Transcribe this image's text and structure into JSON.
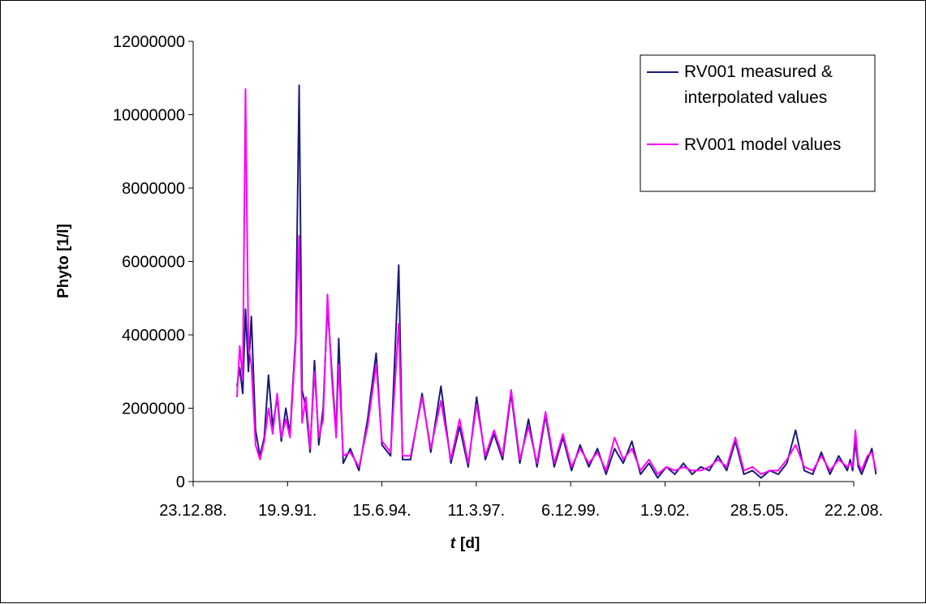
{
  "chart_data": {
    "type": "line",
    "title": "",
    "xlabel": "[d]",
    "xlabel_symbol": "t",
    "ylabel": "Phyto [1/l]",
    "x_type": "date",
    "xlim": [
      "1988-12-23",
      "2008-02-22"
    ],
    "ylim": [
      0,
      12000000
    ],
    "x_ticks": [
      "23.12.88.",
      "19.9.91.",
      "15.6.94.",
      "11.3.97.",
      "6.12.99.",
      "1.9.02.",
      "28.5.05.",
      "22.2.08."
    ],
    "x_tick_dates": [
      "1988-12-23",
      "1991-09-19",
      "1994-06-15",
      "1997-03-11",
      "1999-12-06",
      "2002-09-01",
      "2005-05-28",
      "2008-02-22"
    ],
    "y_ticks": [
      "0",
      "2000000",
      "4000000",
      "6000000",
      "8000000",
      "10000000",
      "12000000"
    ],
    "y_tick_values": [
      0,
      2000000,
      4000000,
      6000000,
      8000000,
      10000000,
      12000000
    ],
    "grid": false,
    "legend_position": "top-right",
    "series": [
      {
        "name": "RV001 measured & interpolated values",
        "color": "#1a1a7a",
        "points": [
          [
            "1990-04-01",
            2600000
          ],
          [
            "1990-05-01",
            3100000
          ],
          [
            "1990-06-01",
            2400000
          ],
          [
            "1990-07-01",
            4700000
          ],
          [
            "1990-08-01",
            3000000
          ],
          [
            "1990-09-01",
            4500000
          ],
          [
            "1990-10-15",
            1400000
          ],
          [
            "1990-12-01",
            700000
          ],
          [
            "1991-01-15",
            1200000
          ],
          [
            "1991-03-01",
            2900000
          ],
          [
            "1991-04-15",
            1500000
          ],
          [
            "1991-06-01",
            2300000
          ],
          [
            "1991-07-15",
            1100000
          ],
          [
            "1991-09-01",
            2000000
          ],
          [
            "1991-10-15",
            1300000
          ],
          [
            "1991-12-15",
            4000000
          ],
          [
            "1992-01-20",
            10800000
          ],
          [
            "1992-02-20",
            2500000
          ],
          [
            "1992-04-01",
            2000000
          ],
          [
            "1992-05-15",
            800000
          ],
          [
            "1992-07-01",
            3300000
          ],
          [
            "1992-08-15",
            1000000
          ],
          [
            "1992-10-01",
            2000000
          ],
          [
            "1992-11-15",
            4800000
          ],
          [
            "1993-01-01",
            3000000
          ],
          [
            "1993-02-15",
            1300000
          ],
          [
            "1993-03-15",
            3900000
          ],
          [
            "1993-05-01",
            500000
          ],
          [
            "1993-07-15",
            900000
          ],
          [
            "1993-10-15",
            300000
          ],
          [
            "1994-01-15",
            1700000
          ],
          [
            "1994-04-15",
            3500000
          ],
          [
            "1994-06-15",
            1000000
          ],
          [
            "1994-09-15",
            700000
          ],
          [
            "1994-12-10",
            5900000
          ],
          [
            "1995-01-20",
            600000
          ],
          [
            "1995-04-15",
            600000
          ],
          [
            "1995-08-15",
            2400000
          ],
          [
            "1995-11-15",
            800000
          ],
          [
            "1996-03-01",
            2600000
          ],
          [
            "1996-06-15",
            500000
          ],
          [
            "1996-09-15",
            1500000
          ],
          [
            "1996-12-15",
            400000
          ],
          [
            "1997-03-15",
            2300000
          ],
          [
            "1997-06-15",
            600000
          ],
          [
            "1997-09-15",
            1300000
          ],
          [
            "1997-12-15",
            600000
          ],
          [
            "1998-03-15",
            2400000
          ],
          [
            "1998-06-15",
            500000
          ],
          [
            "1998-09-15",
            1700000
          ],
          [
            "1998-12-15",
            400000
          ],
          [
            "1999-03-15",
            1800000
          ],
          [
            "1999-06-15",
            400000
          ],
          [
            "1999-09-15",
            1200000
          ],
          [
            "1999-12-15",
            300000
          ],
          [
            "2000-03-15",
            1000000
          ],
          [
            "2000-06-15",
            400000
          ],
          [
            "2000-09-15",
            900000
          ],
          [
            "2000-12-15",
            200000
          ],
          [
            "2001-03-15",
            900000
          ],
          [
            "2001-06-15",
            500000
          ],
          [
            "2001-09-15",
            1100000
          ],
          [
            "2001-12-15",
            200000
          ],
          [
            "2002-03-15",
            500000
          ],
          [
            "2002-06-15",
            100000
          ],
          [
            "2002-09-15",
            400000
          ],
          [
            "2002-12-15",
            200000
          ],
          [
            "2003-03-15",
            500000
          ],
          [
            "2003-06-15",
            200000
          ],
          [
            "2003-09-15",
            400000
          ],
          [
            "2003-12-15",
            300000
          ],
          [
            "2004-03-15",
            700000
          ],
          [
            "2004-06-15",
            300000
          ],
          [
            "2004-09-15",
            1100000
          ],
          [
            "2004-12-15",
            200000
          ],
          [
            "2005-03-15",
            300000
          ],
          [
            "2005-06-15",
            100000
          ],
          [
            "2005-09-15",
            300000
          ],
          [
            "2005-12-15",
            200000
          ],
          [
            "2006-03-15",
            500000
          ],
          [
            "2006-06-15",
            1400000
          ],
          [
            "2006-09-15",
            300000
          ],
          [
            "2006-12-15",
            200000
          ],
          [
            "2007-03-15",
            800000
          ],
          [
            "2007-06-15",
            200000
          ],
          [
            "2007-09-15",
            700000
          ],
          [
            "2007-12-15",
            300000
          ],
          [
            "2008-01-15",
            600000
          ],
          [
            "2008-02-10",
            300000
          ],
          [
            "2008-03-10",
            1100000
          ],
          [
            "2008-04-10",
            400000
          ],
          [
            "2008-05-15",
            200000
          ],
          [
            "2008-07-15",
            600000
          ],
          [
            "2008-09-01",
            900000
          ],
          [
            "2008-10-15",
            200000
          ]
        ]
      },
      {
        "name": "RV001 model values",
        "color": "#ff00ff",
        "points": [
          [
            "1990-04-01",
            2300000
          ],
          [
            "1990-05-01",
            3700000
          ],
          [
            "1990-06-01",
            2800000
          ],
          [
            "1990-07-01",
            10700000
          ],
          [
            "1990-08-01",
            3700000
          ],
          [
            "1990-09-01",
            3200000
          ],
          [
            "1990-10-15",
            1000000
          ],
          [
            "1990-12-01",
            600000
          ],
          [
            "1991-01-15",
            1100000
          ],
          [
            "1991-03-01",
            2000000
          ],
          [
            "1991-04-15",
            1300000
          ],
          [
            "1991-06-01",
            2400000
          ],
          [
            "1991-07-15",
            1200000
          ],
          [
            "1991-09-01",
            1700000
          ],
          [
            "1991-10-15",
            1200000
          ],
          [
            "1991-12-15",
            3800000
          ],
          [
            "1992-01-20",
            6700000
          ],
          [
            "1992-02-20",
            1600000
          ],
          [
            "1992-04-01",
            2300000
          ],
          [
            "1992-05-15",
            900000
          ],
          [
            "1992-07-01",
            3000000
          ],
          [
            "1992-08-15",
            1200000
          ],
          [
            "1992-10-01",
            1700000
          ],
          [
            "1992-11-15",
            5100000
          ],
          [
            "1993-01-01",
            2800000
          ],
          [
            "1993-02-15",
            1200000
          ],
          [
            "1993-03-15",
            3200000
          ],
          [
            "1993-05-01",
            700000
          ],
          [
            "1993-07-15",
            800000
          ],
          [
            "1993-10-15",
            400000
          ],
          [
            "1994-01-15",
            1500000
          ],
          [
            "1994-04-15",
            3200000
          ],
          [
            "1994-06-15",
            1100000
          ],
          [
            "1994-09-15",
            800000
          ],
          [
            "1994-12-10",
            4300000
          ],
          [
            "1995-01-20",
            700000
          ],
          [
            "1995-04-15",
            700000
          ],
          [
            "1995-08-15",
            2300000
          ],
          [
            "1995-11-15",
            900000
          ],
          [
            "1996-03-01",
            2200000
          ],
          [
            "1996-06-15",
            600000
          ],
          [
            "1996-09-15",
            1700000
          ],
          [
            "1996-12-15",
            500000
          ],
          [
            "1997-03-15",
            2100000
          ],
          [
            "1997-06-15",
            700000
          ],
          [
            "1997-09-15",
            1400000
          ],
          [
            "1997-12-15",
            700000
          ],
          [
            "1998-03-15",
            2500000
          ],
          [
            "1998-06-15",
            600000
          ],
          [
            "1998-09-15",
            1500000
          ],
          [
            "1998-12-15",
            500000
          ],
          [
            "1999-03-15",
            1900000
          ],
          [
            "1999-06-15",
            500000
          ],
          [
            "1999-09-15",
            1300000
          ],
          [
            "1999-12-15",
            400000
          ],
          [
            "2000-03-15",
            900000
          ],
          [
            "2000-06-15",
            500000
          ],
          [
            "2000-09-15",
            800000
          ],
          [
            "2000-12-15",
            300000
          ],
          [
            "2001-03-15",
            1200000
          ],
          [
            "2001-06-15",
            600000
          ],
          [
            "2001-09-15",
            900000
          ],
          [
            "2001-12-15",
            300000
          ],
          [
            "2002-03-15",
            600000
          ],
          [
            "2002-06-15",
            200000
          ],
          [
            "2002-09-15",
            400000
          ],
          [
            "2002-12-15",
            300000
          ],
          [
            "2003-03-15",
            400000
          ],
          [
            "2003-06-15",
            300000
          ],
          [
            "2003-09-15",
            300000
          ],
          [
            "2003-12-15",
            400000
          ],
          [
            "2004-03-15",
            600000
          ],
          [
            "2004-06-15",
            400000
          ],
          [
            "2004-09-15",
            1200000
          ],
          [
            "2004-12-15",
            300000
          ],
          [
            "2005-03-15",
            400000
          ],
          [
            "2005-06-15",
            200000
          ],
          [
            "2005-09-15",
            300000
          ],
          [
            "2005-12-15",
            300000
          ],
          [
            "2006-03-15",
            600000
          ],
          [
            "2006-06-15",
            1000000
          ],
          [
            "2006-09-15",
            400000
          ],
          [
            "2006-12-15",
            300000
          ],
          [
            "2007-03-15",
            700000
          ],
          [
            "2007-06-15",
            300000
          ],
          [
            "2007-09-15",
            600000
          ],
          [
            "2007-12-15",
            400000
          ],
          [
            "2008-01-15",
            500000
          ],
          [
            "2008-02-10",
            400000
          ],
          [
            "2008-03-10",
            1400000
          ],
          [
            "2008-04-10",
            500000
          ],
          [
            "2008-05-15",
            300000
          ],
          [
            "2008-07-15",
            700000
          ],
          [
            "2008-09-01",
            800000
          ],
          [
            "2008-10-15",
            300000
          ]
        ]
      }
    ]
  }
}
